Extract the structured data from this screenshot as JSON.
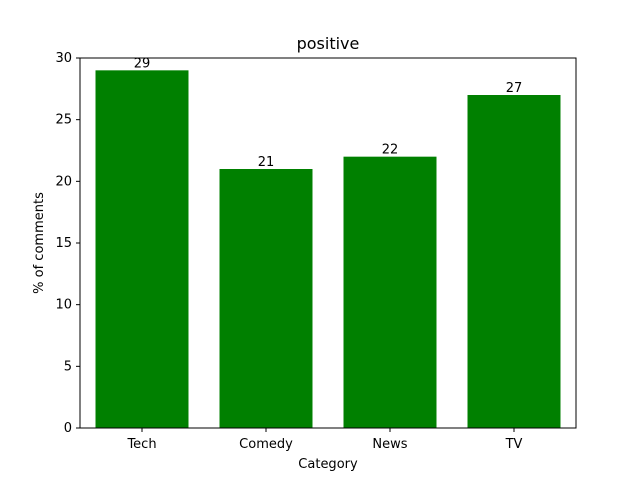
{
  "chart_data": {
    "type": "bar",
    "title": "positive",
    "xlabel": "Category",
    "ylabel": "% of comments",
    "categories": [
      "Tech",
      "Comedy",
      "News",
      "TV"
    ],
    "values": [
      29,
      21,
      22,
      27
    ],
    "data_labels": [
      "29",
      "21",
      "22",
      "27"
    ],
    "ylim": [
      0,
      30
    ],
    "yticks": [
      0,
      5,
      10,
      15,
      20,
      25,
      30
    ],
    "grid": false,
    "legend": "none",
    "bar_color": "#008000"
  }
}
